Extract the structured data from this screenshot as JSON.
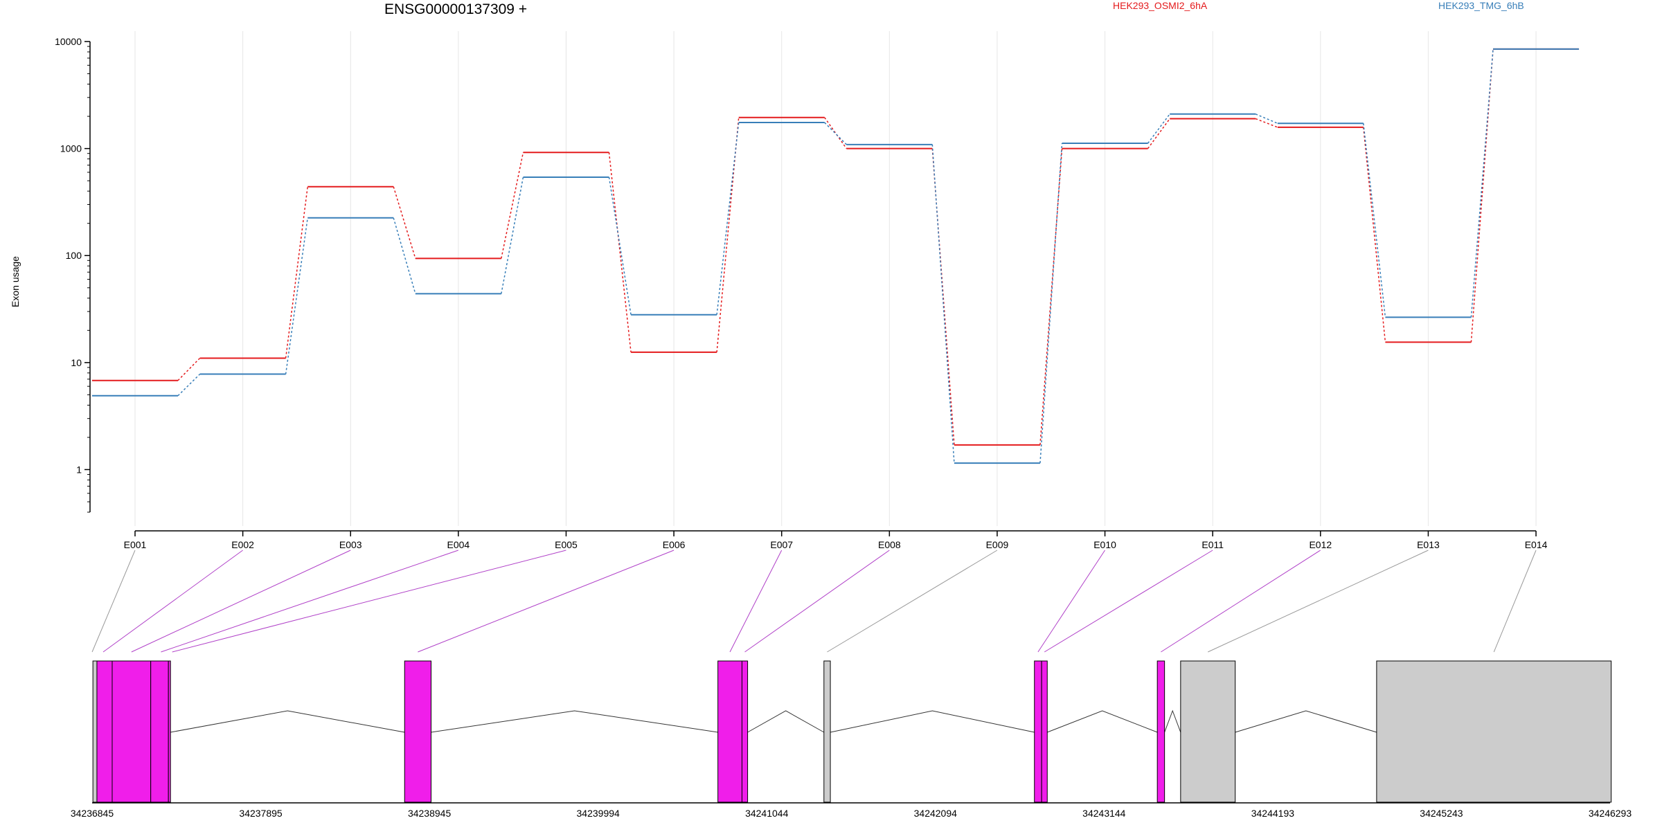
{
  "chart_data": [
    {
      "type": "line",
      "title": "ENSG00000137309 +",
      "ylabel": "Exon usage",
      "yscale": "log",
      "ylim": [
        0.4,
        10000
      ],
      "yticks": [
        "1",
        "10",
        "100",
        "1000",
        "10000"
      ],
      "categories": [
        "E001",
        "E002",
        "E003",
        "E004",
        "E005",
        "E006",
        "E007",
        "E008",
        "E009",
        "E010",
        "E011",
        "E012",
        "E013",
        "E014"
      ],
      "legend": "top",
      "grid": "vertical",
      "series": [
        {
          "name": "HEK293_OSMI2_6hA",
          "color": "#E41A1C",
          "values": [
            6.8,
            11,
            440,
            94,
            920,
            12.5,
            1950,
            1000,
            1.7,
            1000,
            1900,
            1580,
            15.5,
            8500
          ]
        },
        {
          "name": "HEK293_TMG_6hB",
          "color": "#377EB8",
          "values": [
            4.9,
            7.8,
            225,
            44,
            540,
            28,
            1750,
            1090,
            1.15,
            1120,
            2100,
            1720,
            26.5,
            8500
          ]
        }
      ]
    },
    {
      "type": "gene-model",
      "xticks": [
        "34236845",
        "34237895",
        "34238945",
        "34239994",
        "34241044",
        "34242094",
        "34243144",
        "34244193",
        "34245243",
        "34246293"
      ],
      "xlim": [
        34236845,
        34246293
      ],
      "exon_labels": [
        "E001",
        "E002",
        "E003",
        "E004",
        "E005",
        "E006",
        "E007",
        "E008",
        "E009",
        "E010",
        "E011",
        "E012",
        "E013",
        "E014"
      ],
      "exons": [
        {
          "id": "E001",
          "start": 34236850,
          "end": 34236875,
          "status": "not-significant"
        },
        {
          "id": "E002",
          "start": 34236875,
          "end": 34236970,
          "status": "significant"
        },
        {
          "id": "E003",
          "start": 34236970,
          "end": 34237210,
          "status": "significant"
        },
        {
          "id": "E004",
          "start": 34237210,
          "end": 34237320,
          "status": "significant"
        },
        {
          "id": "E005",
          "start": 34237320,
          "end": 34237320,
          "status": "significant"
        },
        {
          "id": "E006",
          "start": 34238790,
          "end": 34238955,
          "status": "significant"
        },
        {
          "id": "E007",
          "start": 34240740,
          "end": 34240890,
          "status": "significant"
        },
        {
          "id": "E008",
          "start": 34240890,
          "end": 34240925,
          "status": "significant"
        },
        {
          "id": "E009",
          "start": 34241400,
          "end": 34241440,
          "status": "not-significant"
        },
        {
          "id": "E010",
          "start": 34242710,
          "end": 34242755,
          "status": "significant"
        },
        {
          "id": "E011",
          "start": 34242755,
          "end": 34242790,
          "status": "significant"
        },
        {
          "id": "E012",
          "start": 34243475,
          "end": 34243520,
          "status": "significant"
        },
        {
          "id": "E013",
          "start": 34243620,
          "end": 34243960,
          "status": "not-significant"
        },
        {
          "id": "E014",
          "start": 34244840,
          "end": 34246300,
          "status": "not-significant"
        }
      ],
      "colors": {
        "significant": "#F01EEA",
        "not-significant": "#CCCCCC"
      }
    }
  ]
}
